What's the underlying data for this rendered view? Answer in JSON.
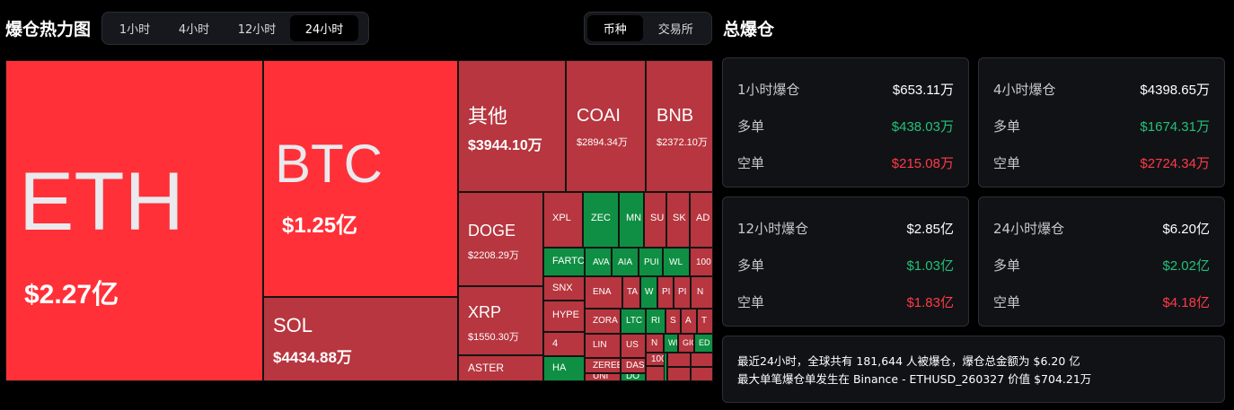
{
  "heatmap": {
    "title": "爆仓热力图",
    "time_options": [
      "1小时",
      "4小时",
      "12小时",
      "24小时"
    ],
    "active_time": "24小时",
    "view_options": [
      "币种",
      "交易所"
    ],
    "active_view": "币种",
    "tiles": [
      {
        "symbol": "ETH",
        "value": "$2.27亿",
        "color": "bright"
      },
      {
        "symbol": "BTC",
        "value": "$1.25亿",
        "color": "bright"
      },
      {
        "symbol": "SOL",
        "value": "$4434.88万",
        "color": "red"
      },
      {
        "symbol": "其他",
        "value": "$3944.10万",
        "color": "red"
      },
      {
        "symbol": "COAI",
        "value": "$2894.34万",
        "color": "red"
      },
      {
        "symbol": "BNB",
        "value": "$2372.10万",
        "color": "red"
      },
      {
        "symbol": "DOGE",
        "value": "$2208.29万",
        "color": "red"
      },
      {
        "symbol": "XRP",
        "value": "$1550.30万",
        "color": "red"
      },
      {
        "symbol": "ASTER",
        "value": "",
        "color": "red"
      },
      {
        "symbol": "XPL",
        "value": "",
        "color": "red"
      },
      {
        "symbol": "ZEC",
        "value": "",
        "color": "green"
      },
      {
        "symbol": "MN",
        "value": "",
        "color": "green"
      },
      {
        "symbol": "SU",
        "value": "",
        "color": "red"
      },
      {
        "symbol": "SK",
        "value": "",
        "color": "red"
      },
      {
        "symbol": "AD",
        "value": "",
        "color": "red"
      },
      {
        "symbol": "FARTC",
        "value": "",
        "color": "green"
      },
      {
        "symbol": "AVA",
        "value": "",
        "color": "green"
      },
      {
        "symbol": "AIA",
        "value": "",
        "color": "green"
      },
      {
        "symbol": "PUI",
        "value": "",
        "color": "green"
      },
      {
        "symbol": "WL",
        "value": "",
        "color": "green"
      },
      {
        "symbol": "100",
        "value": "",
        "color": "red"
      },
      {
        "symbol": "SNX",
        "value": "",
        "color": "red"
      },
      {
        "symbol": "ENA",
        "value": "",
        "color": "red"
      },
      {
        "symbol": "TA",
        "value": "",
        "color": "red"
      },
      {
        "symbol": "W",
        "value": "",
        "color": "green"
      },
      {
        "symbol": "PI",
        "value": "",
        "color": "red"
      },
      {
        "symbol": "PI",
        "value": "",
        "color": "red"
      },
      {
        "symbol": "N",
        "value": "",
        "color": "red"
      },
      {
        "symbol": "HYPE",
        "value": "",
        "color": "red"
      },
      {
        "symbol": "ZORA",
        "value": "",
        "color": "red"
      },
      {
        "symbol": "LTC",
        "value": "",
        "color": "green"
      },
      {
        "symbol": "RI",
        "value": "",
        "color": "green"
      },
      {
        "symbol": "S",
        "value": "",
        "color": "red"
      },
      {
        "symbol": "A",
        "value": "",
        "color": "red"
      },
      {
        "symbol": "T",
        "value": "",
        "color": "red"
      },
      {
        "symbol": "4",
        "value": "",
        "color": "red"
      },
      {
        "symbol": "LIN",
        "value": "",
        "color": "red"
      },
      {
        "symbol": "US",
        "value": "",
        "color": "red"
      },
      {
        "symbol": "N",
        "value": "",
        "color": "red"
      },
      {
        "symbol": "WIF",
        "value": "",
        "color": "green"
      },
      {
        "symbol": "GIG",
        "value": "",
        "color": "red"
      },
      {
        "symbol": "ED",
        "value": "",
        "color": "green"
      },
      {
        "symbol": "ZEREE",
        "value": "",
        "color": "red"
      },
      {
        "symbol": "DASI",
        "value": "",
        "color": "red"
      },
      {
        "symbol": "1000",
        "value": "",
        "color": "red"
      },
      {
        "symbol": "HA",
        "value": "",
        "color": "green"
      },
      {
        "symbol": "UNI",
        "value": "",
        "color": "red"
      },
      {
        "symbol": "DO",
        "value": "",
        "color": "green"
      },
      {
        "symbol": "",
        "value": "",
        "color": "red"
      },
      {
        "symbol": "",
        "value": "",
        "color": "red"
      },
      {
        "symbol": "",
        "value": "",
        "color": "red"
      },
      {
        "symbol": "",
        "value": "",
        "color": "red"
      },
      {
        "symbol": "",
        "value": "",
        "color": "red"
      },
      {
        "symbol": "",
        "value": "",
        "color": "red"
      },
      {
        "symbol": "",
        "value": "",
        "color": "green"
      }
    ]
  },
  "totals": {
    "title": "总爆仓",
    "cards": [
      {
        "label": "1小时爆仓",
        "total": "$653.11万",
        "long_label": "多单",
        "long": "$438.03万",
        "short_label": "空单",
        "short": "$215.08万"
      },
      {
        "label": "4小时爆仓",
        "total": "$4398.65万",
        "long_label": "多单",
        "long": "$1674.31万",
        "short_label": "空单",
        "short": "$2724.34万"
      },
      {
        "label": "12小时爆仓",
        "total": "$2.85亿",
        "long_label": "多单",
        "long": "$1.03亿",
        "short_label": "空单",
        "short": "$1.83亿"
      },
      {
        "label": "24小时爆仓",
        "total": "$6.20亿",
        "long_label": "多单",
        "long": "$2.02亿",
        "short_label": "空单",
        "short": "$4.18亿"
      }
    ],
    "summary_line1": "最近24小时，全球共有 181,644 人被爆仓，爆仓总金额为 $6.20 亿",
    "summary_line2": "最大单笔爆仓单发生在 Binance - ETHUSD_260327 价值 $704.21万"
  },
  "colors": {
    "bright": "#ff3038",
    "red": "#b7363f",
    "green": "#0f8f43",
    "long": "#22c278",
    "short": "#ff3b47"
  }
}
